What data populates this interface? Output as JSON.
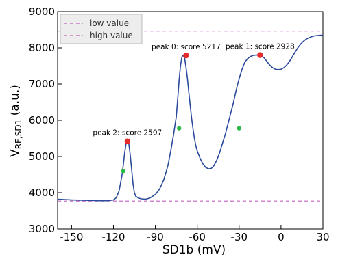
{
  "chart_data": {
    "type": "line",
    "title": "",
    "xlabel": "SD1b (mV)",
    "ylabel": {
      "base": "V",
      "subscript": "RF,SD1",
      "suffix": " (a.u.)"
    },
    "xlim": [
      -160,
      30
    ],
    "ylim": [
      3000,
      9000
    ],
    "xticks": [
      -150,
      -120,
      -90,
      -60,
      -30,
      0,
      30
    ],
    "yticks": [
      3000,
      4000,
      5000,
      6000,
      7000,
      8000,
      9000
    ],
    "grid": false,
    "legend_position": "top-left",
    "legend": [
      {
        "label": "low value",
        "value": 3770,
        "color": "#c060c0",
        "style": "dashed"
      },
      {
        "label": "high value",
        "value": 8460,
        "color": "#c060c0",
        "style": "dashed"
      }
    ],
    "series": [
      {
        "color": "#2b4a9b",
        "x": [
          -160,
          -150,
          -140,
          -130,
          -124,
          -120,
          -118,
          -116,
          -114,
          -113,
          -112,
          -111,
          -110,
          -109,
          -108,
          -107,
          -106,
          -105,
          -104,
          -102,
          -100,
          -97,
          -94,
          -90,
          -87,
          -84,
          -81,
          -79,
          -77,
          -75,
          -74,
          -73,
          -72,
          -71,
          -70,
          -69,
          -68,
          -67,
          -66,
          -65,
          -64,
          -63,
          -62,
          -61,
          -60,
          -58,
          -56,
          -54,
          -52,
          -50,
          -48,
          -46,
          -44,
          -42,
          -40,
          -38,
          -36,
          -34,
          -32,
          -30,
          -28,
          -26,
          -24,
          -22,
          -20,
          -18,
          -16,
          -14,
          -12,
          -10,
          -8,
          -6,
          -4,
          -2,
          0,
          2,
          4,
          6,
          8,
          10,
          12,
          14,
          16,
          18,
          20,
          22,
          24,
          26,
          28,
          30
        ],
        "y": [
          3820,
          3800,
          3790,
          3780,
          3780,
          3800,
          3860,
          4050,
          4450,
          4750,
          5100,
          5350,
          5420,
          5350,
          5050,
          4650,
          4250,
          4000,
          3900,
          3850,
          3830,
          3820,
          3850,
          3950,
          4100,
          4350,
          4750,
          5150,
          5600,
          6100,
          6600,
          7100,
          7500,
          7750,
          7800,
          7700,
          7450,
          7150,
          6750,
          6400,
          6050,
          5750,
          5500,
          5300,
          5150,
          4950,
          4800,
          4700,
          4660,
          4670,
          4750,
          4900,
          5100,
          5350,
          5600,
          5900,
          6200,
          6500,
          6850,
          7150,
          7400,
          7600,
          7700,
          7760,
          7790,
          7800,
          7800,
          7780,
          7720,
          7620,
          7520,
          7450,
          7410,
          7400,
          7410,
          7450,
          7520,
          7620,
          7750,
          7880,
          8000,
          8100,
          8180,
          8240,
          8280,
          8310,
          8330,
          8340,
          8345,
          8350
        ]
      }
    ],
    "peaks": [
      {
        "label": "peak 0: score 5217",
        "x": -68,
        "y": 7790,
        "color": "#e62b2b"
      },
      {
        "label": "peak 1: score 2928",
        "x": -15,
        "y": 7800,
        "color": "#e62b2b"
      },
      {
        "label": "peak 2: score 2507",
        "x": -110,
        "y": 5420,
        "color": "#e62b2b"
      }
    ],
    "half_points": [
      {
        "x": -113,
        "y": 4600,
        "color": "#2db84a"
      },
      {
        "x": -73,
        "y": 5780,
        "color": "#2db84a"
      },
      {
        "x": -30,
        "y": 5780,
        "color": "#2db84a"
      }
    ]
  }
}
